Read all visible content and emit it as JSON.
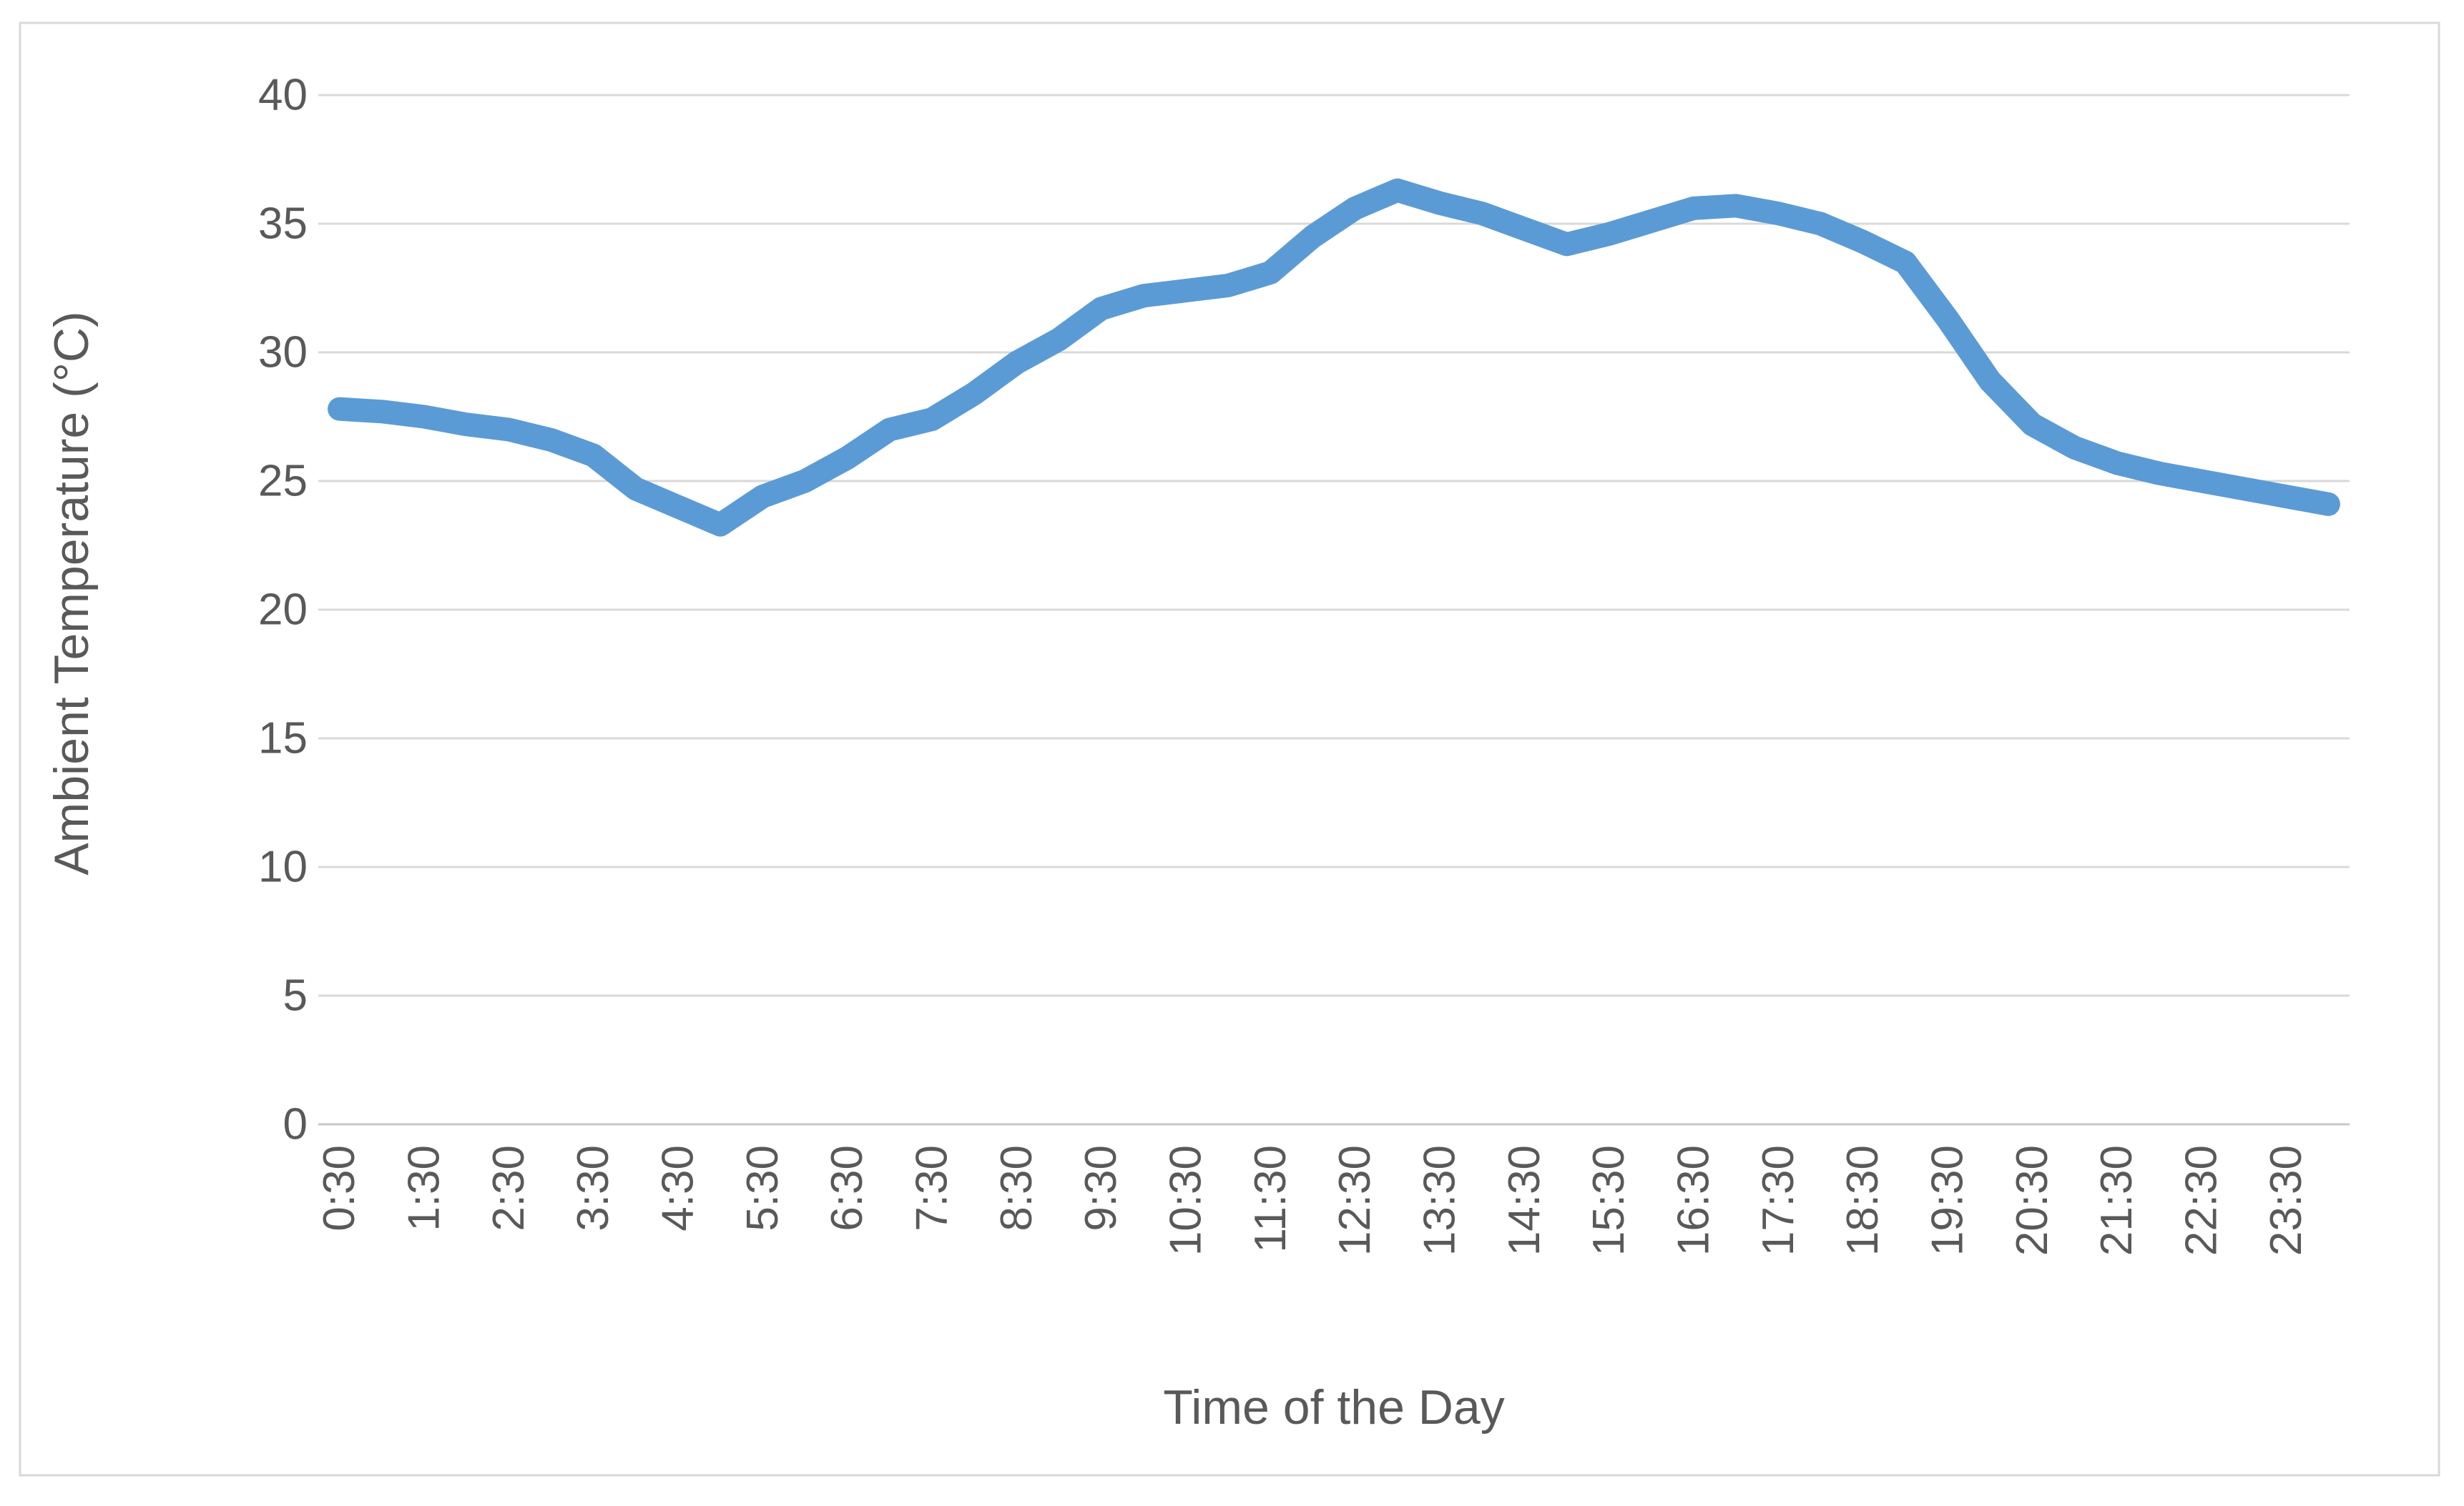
{
  "chart_data": {
    "type": "line",
    "title": "",
    "xlabel": "Time of the Day",
    "ylabel": "Ambient Temperature (°C)",
    "x": [
      "0:30",
      "1:00",
      "1:30",
      "2:00",
      "2:30",
      "3:00",
      "3:30",
      "4:00",
      "4:30",
      "5:00",
      "5:30",
      "6:00",
      "6:30",
      "7:00",
      "7:30",
      "8:00",
      "8:30",
      "9:00",
      "9:30",
      "10:00",
      "10:30",
      "11:00",
      "11:30",
      "12:00",
      "12:30",
      "13:00",
      "13:30",
      "14:00",
      "14:30",
      "15:00",
      "15:30",
      "16:00",
      "16:30",
      "17:00",
      "17:30",
      "18:00",
      "18:30",
      "19:00",
      "19:30",
      "20:00",
      "20:30",
      "21:00",
      "21:30",
      "22:00",
      "22:30",
      "23:00",
      "23:30",
      "0:00"
    ],
    "x_tick_labels": [
      "0:30",
      "1:30",
      "2:30",
      "3:30",
      "4:30",
      "5:30",
      "6:30",
      "7:30",
      "8:30",
      "9:30",
      "10:30",
      "11:30",
      "12:30",
      "13:30",
      "14:30",
      "15:30",
      "16:30",
      "17:30",
      "18:30",
      "19:30",
      "20:30",
      "21:30",
      "22:30",
      "23:30"
    ],
    "series": [
      {
        "name": "Ambient Temperature",
        "values": [
          27.8,
          27.7,
          27.5,
          27.2,
          27.0,
          26.6,
          26.0,
          24.7,
          24.0,
          23.3,
          24.4,
          25.0,
          25.9,
          27.0,
          27.4,
          28.4,
          29.6,
          30.5,
          31.7,
          32.2,
          32.4,
          32.6,
          33.1,
          34.5,
          35.6,
          36.3,
          35.8,
          35.4,
          34.8,
          34.2,
          34.6,
          35.1,
          35.6,
          35.7,
          35.4,
          35.0,
          34.3,
          33.5,
          31.3,
          28.9,
          27.2,
          26.3,
          25.7,
          25.3,
          25.0,
          24.7,
          24.4,
          24.1
        ]
      }
    ],
    "ylim": [
      0,
      40
    ],
    "ytick_step": 5,
    "ytick_labels": [
      "0",
      "5",
      "10",
      "15",
      "20",
      "25",
      "30",
      "35",
      "40"
    ],
    "grid": true,
    "legend": false,
    "line_color": "#5B9BD5",
    "grid_color": "#D9D9D9",
    "axis_line_color": "#C9C9C9",
    "text_color": "#595959",
    "border_color": "#D9D9D9",
    "background_color": "#FFFFFF"
  }
}
